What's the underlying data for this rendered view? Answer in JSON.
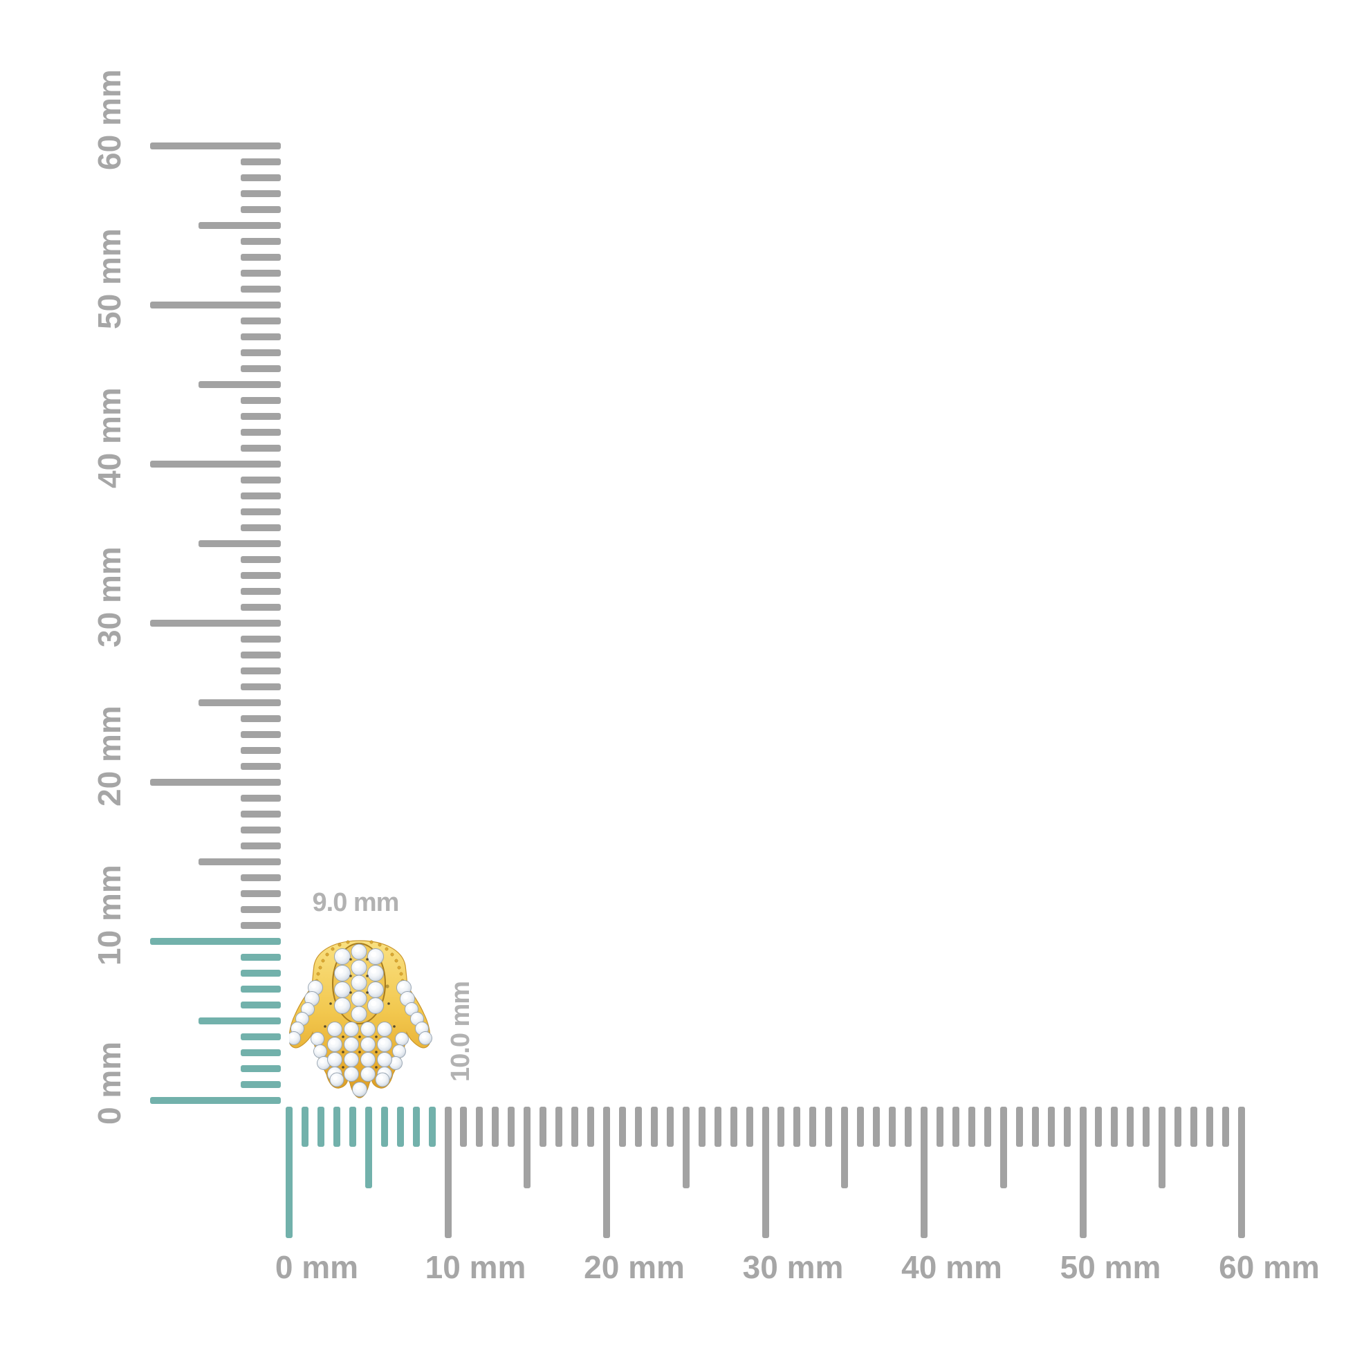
{
  "figure": {
    "icon": "hamsa-hand-diamond-stud-earring",
    "material": "gold-with-pave-diamonds"
  },
  "annotations": {
    "width_label": "9.0 mm",
    "height_label": "10.0 mm"
  },
  "vertical_ruler": {
    "unit": "mm",
    "min_mm": 0,
    "max_mm": 60,
    "minor_step_mm": 1,
    "medium_step_mm": 5,
    "major_step_mm": 10,
    "labels": [
      "0 mm",
      "10 mm",
      "20 mm",
      "30 mm",
      "40 mm",
      "50 mm",
      "60 mm"
    ],
    "highlight_range_mm": [
      0,
      10
    ]
  },
  "horizontal_ruler": {
    "unit": "mm",
    "min_mm": 0,
    "max_mm": 60,
    "minor_step_mm": 1,
    "medium_step_mm": 5,
    "major_step_mm": 10,
    "labels": [
      "0 mm",
      "10 mm",
      "20 mm",
      "30 mm",
      "40 mm",
      "50 mm",
      "60 mm"
    ],
    "highlight_range_mm": [
      0,
      9
    ]
  },
  "colors": {
    "background": "#ffffff",
    "tick_gray": "#a2a2a2",
    "ruler_label_gray": "#a6a6a6",
    "measure_label_gray": "#b2b2b2",
    "highlight_teal": "#72b1ab",
    "gold": "#f0c349",
    "gold_dark": "#c08b26",
    "gold_outline": "#b5831f",
    "diamond_white": "#f4f7fa",
    "diamond_edge": "#96a3b0"
  }
}
